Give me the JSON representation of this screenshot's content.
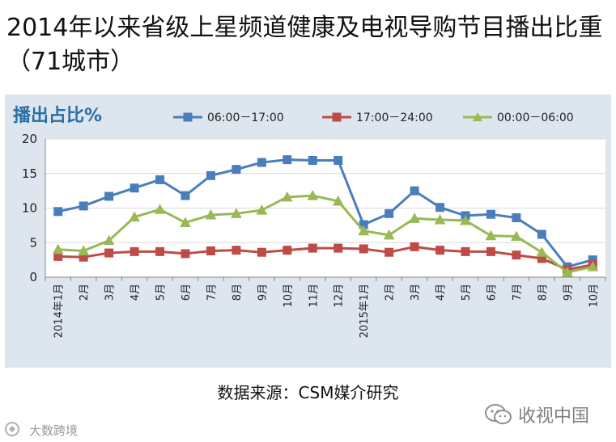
{
  "title": "2014年以来省级上星频道健康及电视导购节目播出比重（71城市）",
  "chart_data": {
    "type": "line",
    "ylabel": "播出占比%",
    "ylim": [
      0,
      20
    ],
    "yticks": [
      "0",
      "5",
      "10",
      "15",
      "20"
    ],
    "yticks_values": [
      0,
      5,
      10,
      15,
      20
    ],
    "categories": [
      "2014年1月",
      "2月",
      "3月",
      "4月",
      "5月",
      "6月",
      "7月",
      "8月",
      "9月",
      "10月",
      "11月",
      "12月",
      "2015年1月",
      "2月",
      "3月",
      "4月",
      "5月",
      "6月",
      "7月",
      "8月",
      "9月",
      "10月"
    ],
    "legend_position": "top",
    "series": [
      {
        "name": "06:00－17:00",
        "color": "#4a7ebb",
        "marker": "square",
        "values": [
          9.5,
          10.3,
          11.7,
          12.9,
          14.1,
          11.8,
          14.7,
          15.6,
          16.6,
          17.0,
          16.9,
          16.9,
          7.6,
          9.2,
          12.5,
          10.1,
          8.9,
          9.1,
          8.6,
          6.2,
          1.5,
          2.5
        ]
      },
      {
        "name": "17:00－24:00",
        "color": "#be4b48",
        "marker": "square",
        "values": [
          3.0,
          2.9,
          3.5,
          3.7,
          3.7,
          3.4,
          3.8,
          3.9,
          3.6,
          3.9,
          4.2,
          4.2,
          4.1,
          3.6,
          4.4,
          3.9,
          3.7,
          3.7,
          3.2,
          2.7,
          1.1,
          1.8
        ]
      },
      {
        "name": "00:00－06:00",
        "color": "#98b954",
        "marker": "triangle",
        "values": [
          4.0,
          3.8,
          5.3,
          8.7,
          9.8,
          7.9,
          9.0,
          9.2,
          9.7,
          11.6,
          11.8,
          11.0,
          6.7,
          6.1,
          8.5,
          8.3,
          8.2,
          6.0,
          5.9,
          3.6,
          0.7,
          1.5
        ]
      }
    ]
  },
  "source": "数据来源：CSM媒介研究",
  "watermark_right": "收视中国",
  "watermark_left": "大数跨境"
}
